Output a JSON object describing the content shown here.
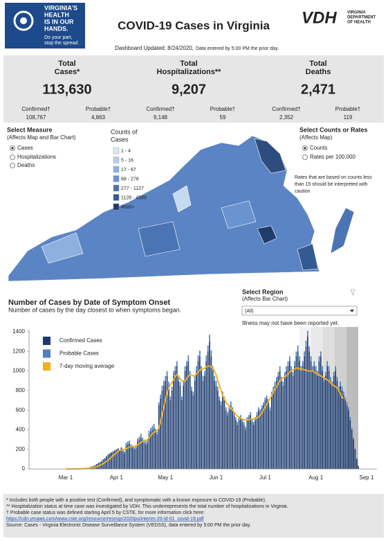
{
  "header": {
    "logo_lines": [
      "VIRGINIA'S",
      "HEALTH",
      "IS IN OUR",
      "HANDS."
    ],
    "logo_tagline": [
      "Do your part,",
      "stop the spread."
    ],
    "title": "COVID-19 Cases in Virginia",
    "vdh_mark": "VDH",
    "vdh_name": [
      "VIRGINIA",
      "DEPARTMENT",
      "OF HEALTH"
    ],
    "updated": "Dashboard Updated: 8/24/2020,",
    "entered": "Data entered by 5:00 PM the prior day."
  },
  "kpis": [
    {
      "label": [
        "Total",
        "Cases*"
      ],
      "value": "113,630",
      "sub": [
        {
          "label": "Confirmed†",
          "value": "108,767"
        },
        {
          "label": "Probable†",
          "value": "4,863"
        }
      ]
    },
    {
      "label": [
        "Total",
        "Hospitalizations**"
      ],
      "value": "9,207",
      "sub": [
        {
          "label": "Confirmed†",
          "value": "9,148"
        },
        {
          "label": "Probable†",
          "value": "59"
        }
      ]
    },
    {
      "label": [
        "Total",
        "Deaths"
      ],
      "value": "2,471",
      "sub": [
        {
          "label": "Confirmed†",
          "value": "2,352"
        },
        {
          "label": "Probable†",
          "value": "119"
        }
      ]
    }
  ],
  "map": {
    "measure_title": "Select Measure",
    "measure_sub": "(Affects Map and Bar Chart)",
    "measures": [
      "Cases",
      "Hospitalizations",
      "Deaths"
    ],
    "legend_title": [
      "Counts of",
      "Cases"
    ],
    "legend": [
      "1 - 4",
      "5 - 16",
      "17 - 67",
      "68 - 276",
      "277 - 1127",
      "1128 - 4599",
      "4600+"
    ],
    "rates_title": "Select Counts or Rates",
    "rates_sub": "(Affects Map)",
    "rates": [
      "Counts",
      "Rates per 100,000"
    ],
    "rates_note": [
      "Rates that are based on counts less",
      "than 15 should be interpreted with",
      "caution"
    ]
  },
  "region": {
    "title": "Select Region",
    "sub": "(Affects Bar Chart)",
    "value": "(All)",
    "note": "Illness may not have been reported yet."
  },
  "chart_data": {
    "type": "bar",
    "stacked": true,
    "title": "Number of Cases by Date of Symptom Onset",
    "subtitle": "Number of cases by the day closest to when symptoms began.",
    "categories": [
      "Mar 1",
      null,
      null,
      null,
      null,
      null,
      null,
      null,
      null,
      null,
      null,
      null,
      null,
      null,
      null,
      null,
      null,
      null,
      null,
      null,
      null,
      null,
      null,
      null,
      null,
      null,
      null,
      null,
      null,
      null,
      null,
      "Apr 1",
      null,
      null,
      null,
      null,
      null,
      null,
      null,
      null,
      null,
      null,
      null,
      null,
      null,
      null,
      null,
      null,
      null,
      null,
      null,
      null,
      null,
      null,
      null,
      null,
      null,
      null,
      null,
      null,
      null,
      "May 1",
      null,
      null,
      null,
      null,
      null,
      null,
      null,
      null,
      null,
      null,
      null,
      null,
      null,
      null,
      null,
      null,
      null,
      null,
      null,
      null,
      null,
      null,
      null,
      null,
      null,
      null,
      null,
      null,
      null,
      null,
      "Jun 1",
      null,
      null,
      null,
      null,
      null,
      null,
      null,
      null,
      null,
      null,
      null,
      null,
      null,
      null,
      null,
      null,
      null,
      null,
      null,
      null,
      null,
      null,
      null,
      null,
      null,
      null,
      null,
      null,
      null,
      "Jul 1",
      null,
      null,
      null,
      null,
      null,
      null,
      null,
      null,
      null,
      null,
      null,
      null,
      null,
      null,
      null,
      null,
      null,
      null,
      null,
      null,
      null,
      null,
      null,
      null,
      null,
      null,
      null,
      null,
      null,
      null,
      "Aug 1",
      null,
      null,
      null,
      null,
      null,
      null,
      null,
      null,
      null,
      null,
      null,
      null,
      null,
      null,
      null,
      null,
      null,
      null,
      null,
      null,
      null,
      null,
      null,
      null,
      null,
      null,
      null,
      null,
      null,
      null,
      "Sep 1"
    ],
    "series": [
      {
        "name": "Confirmed Cases",
        "color": "#1c3a6e",
        "values": [
          0,
          0,
          0,
          0,
          0,
          0,
          1,
          2,
          2,
          3,
          5,
          8,
          10,
          12,
          15,
          20,
          25,
          30,
          40,
          50,
          60,
          70,
          80,
          100,
          110,
          130,
          150,
          160,
          170,
          180,
          190,
          200,
          210,
          190,
          220,
          180,
          160,
          240,
          250,
          260,
          230,
          220,
          200,
          210,
          280,
          300,
          320,
          290,
          270,
          250,
          260,
          350,
          380,
          400,
          420,
          380,
          350,
          650,
          720,
          800,
          850,
          900,
          950,
          850,
          700,
          800,
          950,
          1000,
          1050,
          900,
          850,
          700,
          850,
          1000,
          1050,
          1100,
          950,
          800,
          750,
          900,
          1000,
          1100,
          1150,
          1000,
          900,
          950,
          1100,
          1200,
          1300,
          1150,
          1000,
          900,
          850,
          800,
          700,
          650,
          750,
          700,
          600,
          550,
          600,
          650,
          600,
          550,
          500,
          450,
          500,
          520,
          480,
          450,
          400,
          500,
          520,
          550,
          480,
          450,
          500,
          550,
          600,
          580,
          620,
          650,
          700,
          720,
          680,
          600,
          750,
          800,
          850,
          900,
          950,
          1000,
          900,
          850,
          950,
          1000,
          1050,
          1100,
          1000,
          950,
          1050,
          1150,
          1200,
          1100,
          1000,
          1050,
          1150,
          1250,
          1350,
          1200,
          1100,
          1000,
          1050,
          1000,
          950,
          1100,
          1150,
          1000,
          900,
          950,
          1050,
          1000,
          900,
          850,
          950,
          1000,
          900,
          800,
          850,
          800,
          750,
          700,
          650,
          600,
          500,
          400,
          300,
          200,
          100,
          30,
          0,
          0,
          0,
          0,
          0
        ]
      },
      {
        "name": "Probable Cases",
        "color": "#4f7fc4",
        "values": [
          0,
          0,
          0,
          0,
          0,
          0,
          0,
          0,
          0,
          0,
          0,
          0,
          0,
          0,
          0,
          0,
          0,
          0,
          0,
          0,
          0,
          0,
          0,
          0,
          0,
          0,
          0,
          0,
          0,
          0,
          0,
          0,
          0,
          0,
          0,
          20,
          20,
          30,
          30,
          30,
          20,
          20,
          20,
          30,
          30,
          30,
          40,
          30,
          30,
          30,
          30,
          40,
          40,
          40,
          40,
          30,
          30,
          30,
          40,
          50,
          50,
          50,
          50,
          40,
          40,
          40,
          50,
          50,
          50,
          40,
          40,
          40,
          50,
          50,
          50,
          60,
          50,
          40,
          40,
          50,
          50,
          60,
          60,
          50,
          50,
          50,
          60,
          60,
          70,
          60,
          50,
          50,
          50,
          40,
          40,
          40,
          40,
          40,
          30,
          30,
          30,
          40,
          30,
          30,
          30,
          30,
          30,
          30,
          30,
          30,
          30,
          30,
          30,
          30,
          30,
          30,
          30,
          30,
          30,
          30,
          30,
          30,
          30,
          30,
          30,
          30,
          40,
          40,
          40,
          40,
          40,
          50,
          40,
          40,
          40,
          50,
          50,
          50,
          50,
          40,
          50,
          50,
          60,
          50,
          50,
          50,
          50,
          60,
          60,
          50,
          50,
          50,
          50,
          50,
          50,
          50,
          50,
          50,
          40,
          40,
          50,
          50,
          40,
          40,
          40,
          50,
          40,
          40,
          40,
          40,
          40,
          30,
          30,
          30,
          30,
          20,
          20,
          10,
          10,
          0,
          0,
          0,
          0,
          0,
          0
        ]
      },
      {
        "name": "7-day moving average",
        "color": "#f2b01e",
        "type": "line",
        "values": [
          0,
          0,
          0,
          0,
          0,
          0,
          0,
          1,
          1,
          2,
          2,
          3,
          4,
          5,
          7,
          9,
          12,
          15,
          19,
          24,
          30,
          37,
          45,
          55,
          65,
          77,
          90,
          105,
          120,
          135,
          150,
          165,
          180,
          190,
          195,
          200,
          200,
          205,
          215,
          225,
          230,
          230,
          230,
          235,
          245,
          260,
          270,
          280,
          285,
          290,
          300,
          320,
          340,
          360,
          375,
          380,
          390,
          420,
          480,
          560,
          630,
          700,
          780,
          830,
          860,
          880,
          910,
          950,
          960,
          950,
          920,
          900,
          900,
          900,
          920,
          950,
          960,
          960,
          950,
          950,
          970,
          990,
          1010,
          1020,
          1020,
          1030,
          1040,
          1050,
          1050,
          1040,
          1030,
          1000,
          960,
          900,
          850,
          800,
          750,
          720,
          680,
          660,
          640,
          620,
          600,
          580,
          560,
          540,
          530,
          520,
          510,
          500,
          500,
          500,
          500,
          510,
          510,
          510,
          520,
          520,
          530,
          550,
          570,
          600,
          630,
          660,
          690,
          720,
          750,
          780,
          810,
          840,
          870,
          900,
          920,
          930,
          940,
          950,
          970,
          990,
          1000,
          1010,
          1020,
          1030,
          1030,
          1020,
          1020,
          1020,
          1010,
          1010,
          1000,
          1000,
          1000,
          1000,
          990,
          980,
          970,
          960,
          950,
          940,
          930,
          920,
          910,
          900,
          880,
          860,
          850,
          840,
          830,
          800,
          770,
          730,
          720,
          null,
          null,
          null,
          null,
          null,
          null,
          null,
          null,
          null,
          null,
          null,
          null,
          null,
          null
        ]
      }
    ],
    "ylim": [
      0,
      1400
    ],
    "yticks": [
      0,
      200,
      400,
      600,
      800,
      1000,
      1200,
      1400
    ],
    "grid": false
  },
  "footer": {
    "notes": [
      "* Includes both people with a positive test (Confirmed), and symptomatic with a known exposure to COVID-19 (Probable).",
      "** Hospitalization status at time case was investigated by VDH. This underrepresents the total number of hospitalizations in Virginia.",
      "† Probable case status was defined starting April 5 by CSTE, for more information click here:"
    ],
    "link": "https://cdn.ymaws.com/www.cste.org/resource/resmgr/2020ps/interim-20-id-01_covid-19.pdf",
    "source": "Source:  Cases - Virginia Electronic Disease Surveillance System (VEDSS), data entered by 5:00 PM the prior day."
  }
}
